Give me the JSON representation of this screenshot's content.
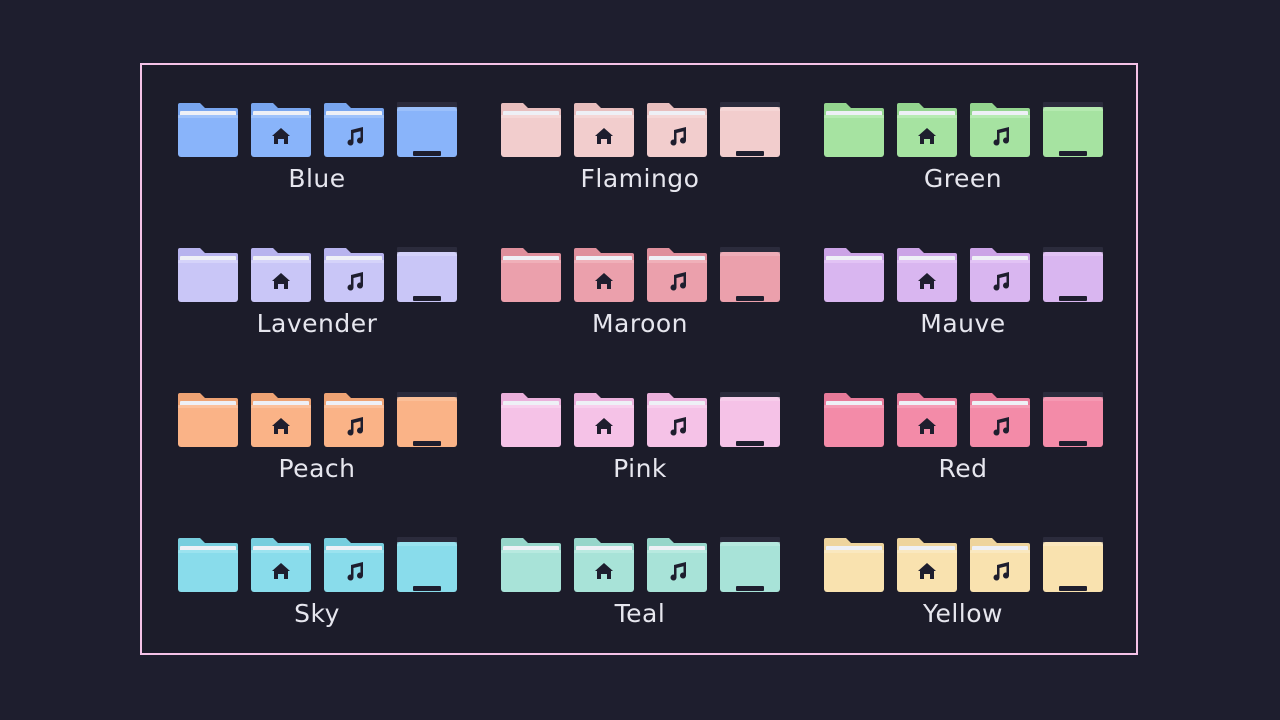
{
  "sets": [
    {
      "label": "Blue",
      "color": "#89b4fa",
      "light": "#a6c8fb",
      "tab": "#79a6ef"
    },
    {
      "label": "Flamingo",
      "color": "#f2cdcd",
      "light": "#f7dcdc",
      "tab": "#e8bebe"
    },
    {
      "label": "Green",
      "color": "#a6e3a1",
      "light": "#bfeeba",
      "tab": "#94d58f"
    },
    {
      "label": "Lavender",
      "color": "#c9c6f7",
      "light": "#dad8fb",
      "tab": "#b7b3ee"
    },
    {
      "label": "Maroon",
      "color": "#eba0ac",
      "light": "#f2b6bf",
      "tab": "#df8f9c"
    },
    {
      "label": "Mauve",
      "color": "#d9b6f0",
      "light": "#e6c9f6",
      "tab": "#cba3e6"
    },
    {
      "label": "Peach",
      "color": "#fab387",
      "light": "#fcc6a4",
      "tab": "#eea374"
    },
    {
      "label": "Pink",
      "color": "#f5c2e7",
      "light": "#f9d4ef",
      "tab": "#ebb0db"
    },
    {
      "label": "Red",
      "color": "#f38ba8",
      "light": "#f7a3bb",
      "tab": "#e77a99"
    },
    {
      "label": "Sky",
      "color": "#89dceb",
      "light": "#a3e6f1",
      "tab": "#77cede"
    },
    {
      "label": "Teal",
      "color": "#a8e3d8",
      "light": "#bfece4",
      "tab": "#96d6ca"
    },
    {
      "label": "Yellow",
      "color": "#f9e2af",
      "light": "#fbebc6",
      "tab": "#eed49d"
    }
  ],
  "icon_types": [
    "folder-icon",
    "folder-home-icon",
    "folder-music-icon",
    "folder-open-icon"
  ],
  "colors": {
    "background": "#1e1e2e",
    "frame_border": "#f5c2e7",
    "glyph": "#1e1e2e"
  }
}
